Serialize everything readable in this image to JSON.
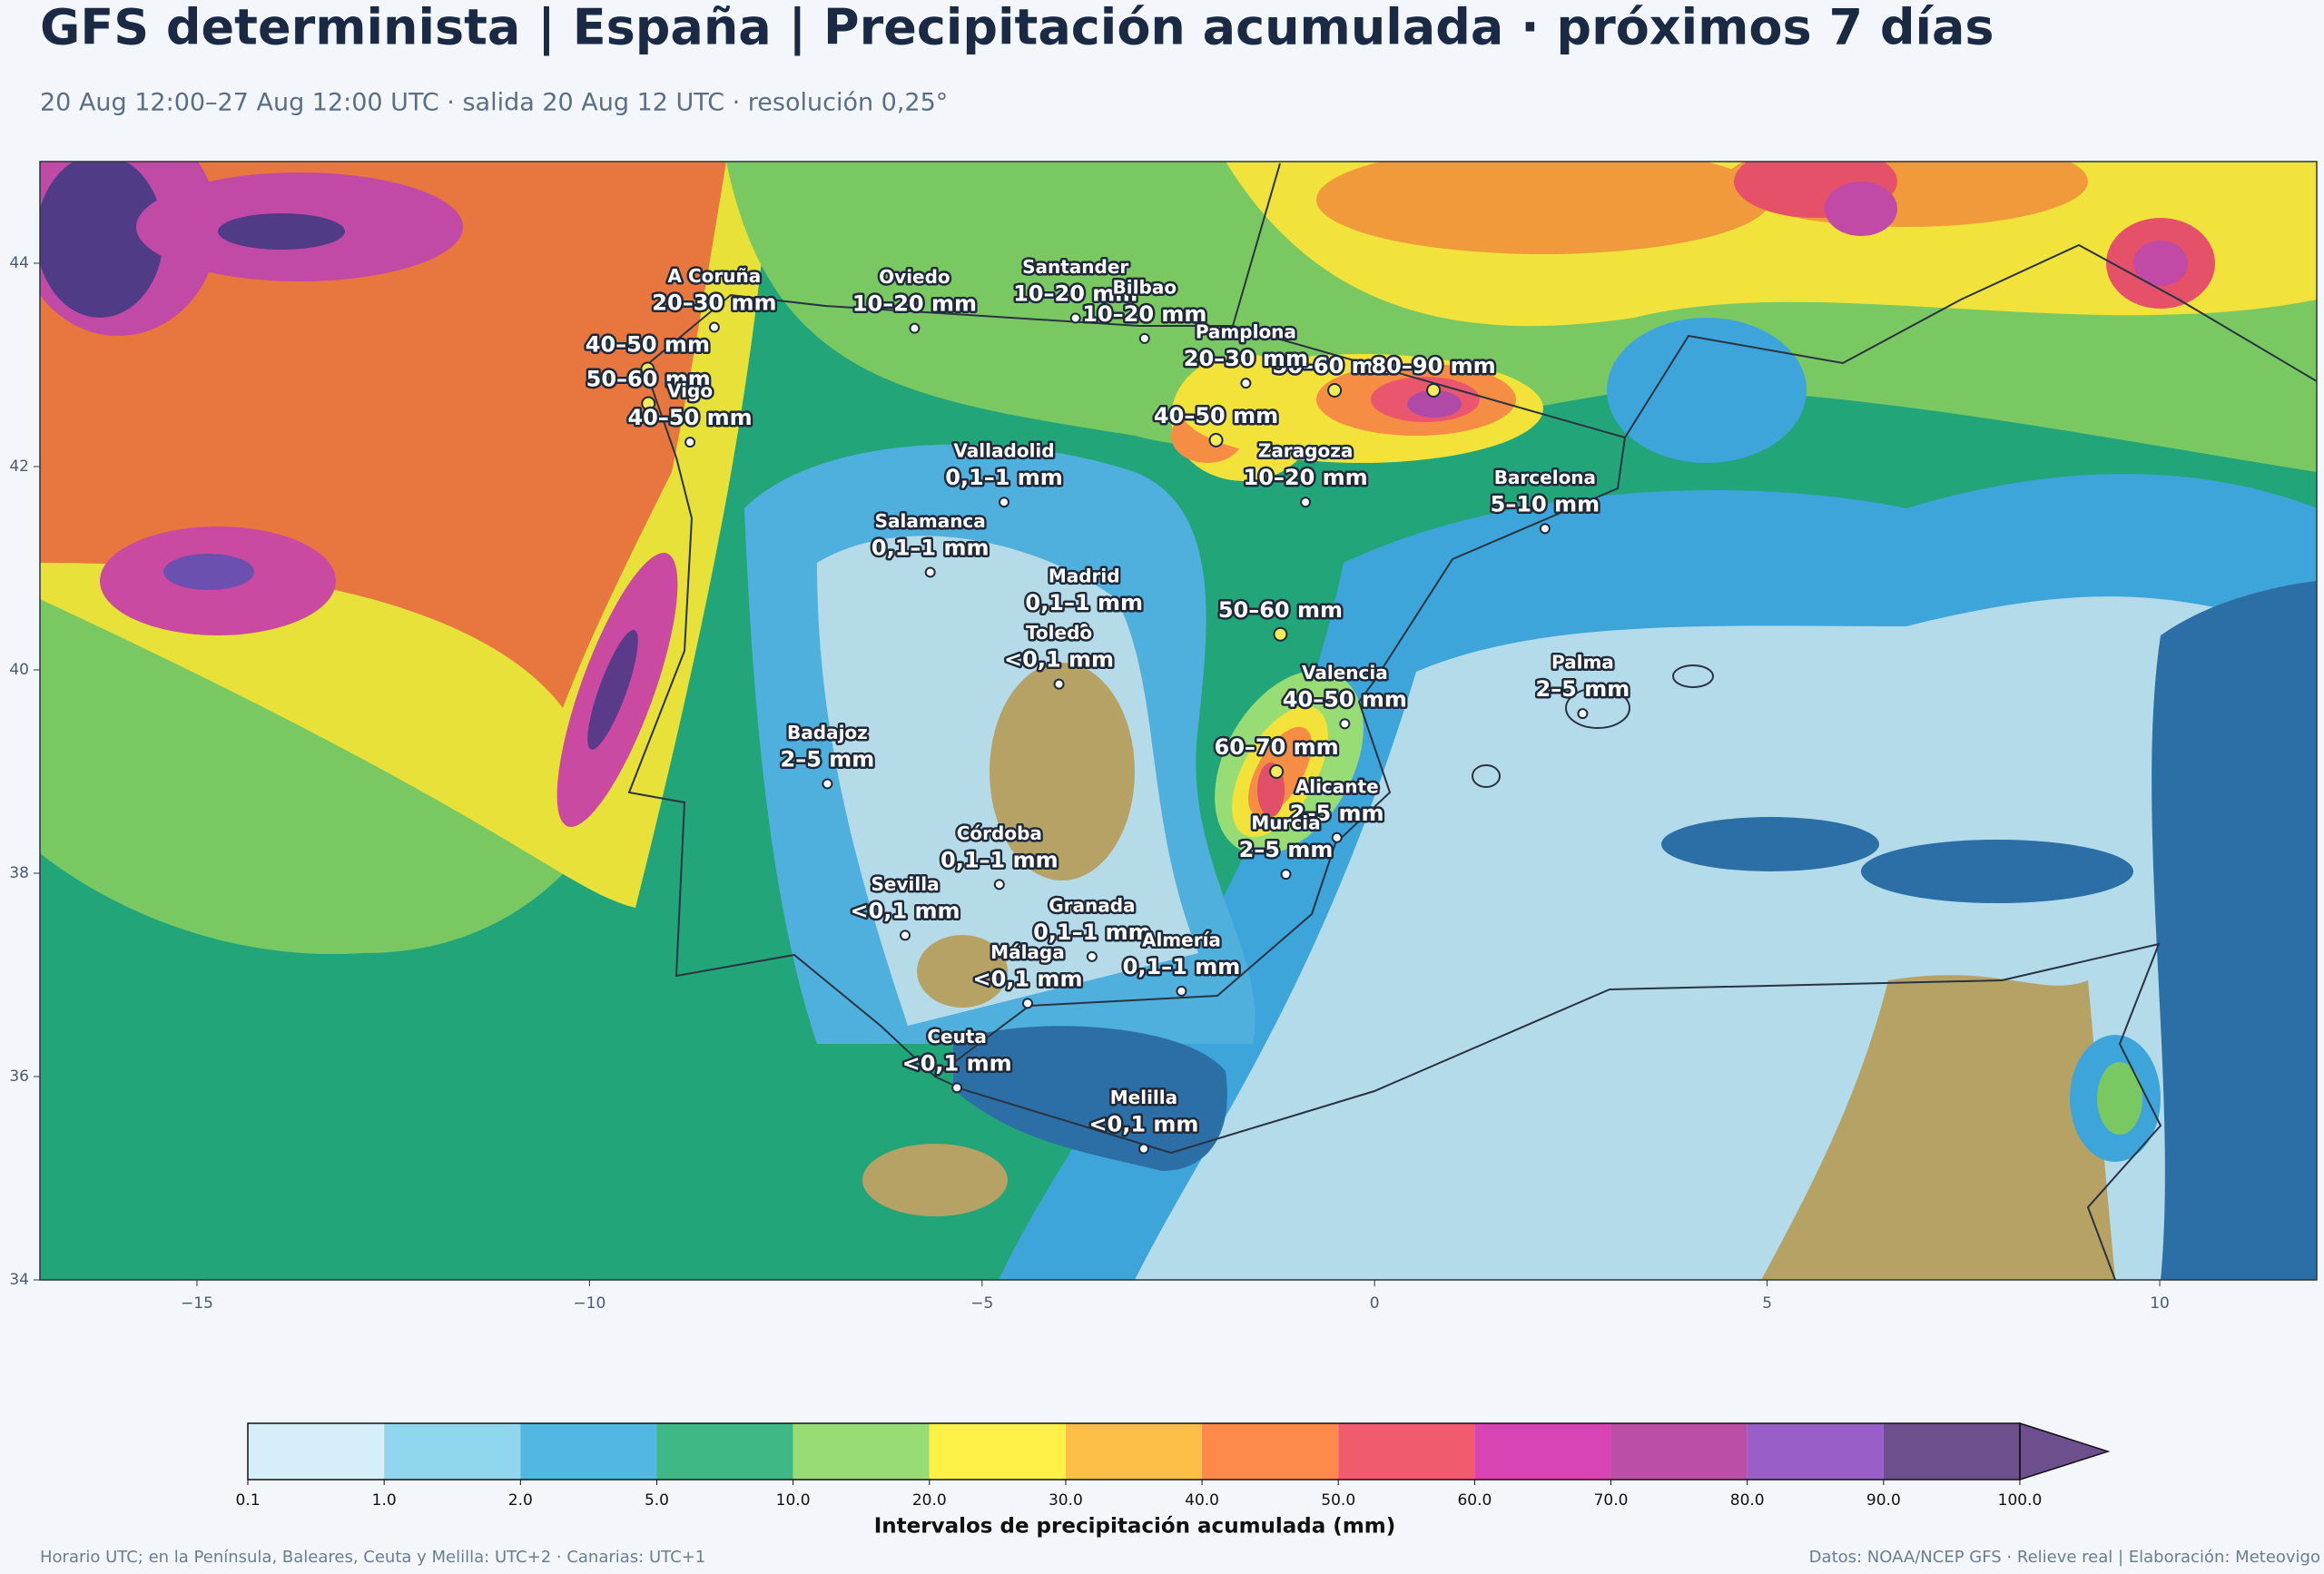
{
  "header": {
    "title": "GFS determinista | España | Precipitación acumulada · próximos 7 días",
    "subtitle": "20 Aug 12:00–27 Aug 12:00 UTC · salida 20 Aug 12 UTC · resolución 0,25°"
  },
  "map": {
    "xlim": [
      -17,
      12
    ],
    "ylim": [
      34,
      45
    ],
    "xticks": [
      {
        "value": -15,
        "label": "−15"
      },
      {
        "value": -10,
        "label": "−10"
      },
      {
        "value": -5,
        "label": "−5"
      },
      0,
      5,
      10
    ],
    "yticks": [
      34,
      36,
      38,
      40,
      42,
      44
    ],
    "places": [
      {
        "name": "A Coruña",
        "label": "20–30 mm",
        "lon": -8.41,
        "lat": 43.37
      },
      {
        "name": "Oviedo",
        "label": "10–20 mm",
        "lon": -5.86,
        "lat": 43.36
      },
      {
        "name": "Santander",
        "label": "10–20 mm",
        "lon": -3.81,
        "lat": 43.46
      },
      {
        "name": "Bilbao",
        "label": "10–20 mm",
        "lon": -2.93,
        "lat": 43.26
      },
      {
        "name": "Pamplona",
        "label": "20–30 mm",
        "lon": -1.64,
        "lat": 42.82
      },
      {
        "name": "Vigo",
        "label": "40–50 mm",
        "lon": -8.72,
        "lat": 42.24
      },
      {
        "name": "Valladolid",
        "label": "0,1–1 mm",
        "lon": -4.72,
        "lat": 41.65
      },
      {
        "name": "Zaragoza",
        "label": "10–20 mm",
        "lon": -0.88,
        "lat": 41.65
      },
      {
        "name": "Barcelona",
        "label": "5–10 mm",
        "lon": 2.17,
        "lat": 41.39
      },
      {
        "name": "Salamanca",
        "label": "0,1–1 mm",
        "lon": -5.66,
        "lat": 40.96
      },
      {
        "name": "Madrid",
        "label": "0,1–1 mm",
        "lon": -3.7,
        "lat": 40.42
      },
      {
        "name": "Valencia",
        "label": "40–50 mm",
        "lon": -0.38,
        "lat": 39.47
      },
      {
        "name": "Palma",
        "label": "2–5 mm",
        "lon": 2.65,
        "lat": 39.57
      },
      {
        "name": "Badajoz",
        "label": "2–5 mm",
        "lon": -6.97,
        "lat": 38.88
      },
      {
        "name": "Toledo",
        "label": "<0,1 mm",
        "lon": -4.02,
        "lat": 39.86
      },
      {
        "name": "Córdoba",
        "label": "0,1–1 mm",
        "lon": -4.78,
        "lat": 37.89
      },
      {
        "name": "Alicante",
        "label": "2–5 mm",
        "lon": -0.48,
        "lat": 38.35
      },
      {
        "name": "Murcia",
        "label": "2–5 mm",
        "lon": -1.13,
        "lat": 37.99
      },
      {
        "name": "Granada",
        "label": "0,1–1 mm",
        "lon": -3.6,
        "lat": 37.18
      },
      {
        "name": "Sevilla",
        "label": "<0,1 mm",
        "lon": -5.98,
        "lat": 37.39
      },
      {
        "name": "Málaga",
        "label": "<0,1 mm",
        "lon": -4.42,
        "lat": 36.72
      },
      {
        "name": "Almería",
        "label": "0,1–1 mm",
        "lon": -2.46,
        "lat": 36.84
      },
      {
        "name": "Ceuta",
        "label": "<0,1 mm",
        "lon": -5.32,
        "lat": 35.89
      },
      {
        "name": "Melilla",
        "label": "<0,1 mm",
        "lon": -2.94,
        "lat": 35.29
      }
    ],
    "maxima": [
      {
        "label": "40–50 mm",
        "lon": -9.26,
        "lat": 42.96
      },
      {
        "label": "50–60 mm",
        "lon": -9.25,
        "lat": 42.62
      },
      {
        "label": "40–50 mm",
        "lon": -2.02,
        "lat": 42.26
      },
      {
        "label": "50–60 mm",
        "lon": -0.51,
        "lat": 42.75
      },
      {
        "label": "80–90 mm",
        "lon": 0.75,
        "lat": 42.75
      },
      {
        "label": "50–60 mm",
        "lon": -1.2,
        "lat": 40.35
      },
      {
        "label": "60–70 mm",
        "lon": -1.25,
        "lat": 39.0
      }
    ]
  },
  "colorbar": {
    "ticks": [
      0.1,
      {
        "value": 1,
        "label": "1.0"
      },
      {
        "value": 2,
        "label": "2.0"
      },
      {
        "value": 5,
        "label": "5.0"
      },
      {
        "value": 10,
        "label": "10.0"
      },
      {
        "value": 20,
        "label": "20.0"
      },
      {
        "value": 30,
        "label": "30.0"
      },
      {
        "value": 40,
        "label": "40.0"
      },
      {
        "value": 50,
        "label": "50.0"
      },
      {
        "value": 60,
        "label": "60.0"
      },
      {
        "value": 70,
        "label": "70.0"
      },
      {
        "value": 80,
        "label": "80.0"
      },
      {
        "value": 90,
        "label": "90.0"
      },
      {
        "value": 100,
        "label": "100.0"
      }
    ],
    "colors": [
      "#d6eef7",
      "#8fd6ee",
      "#52b8e2",
      "#3fb886",
      "#98dc75",
      "#fdf046",
      "#fdbf47",
      "#fd8a4a",
      "#f05c6e",
      "#d944b5",
      "#bb4fa8",
      "#9a5ec8",
      "#6e4f8e"
    ],
    "label": "Intervalos de precipitación acumulada (mm)"
  },
  "footer": {
    "left": "Horario UTC; en la Península, Baleares, Ceuta y Melilla: UTC+2 · Canarias: UTC+1",
    "right": "Datos: NOAA/NCEP GFS · Relieve real | Elaboración: Meteovigo"
  }
}
